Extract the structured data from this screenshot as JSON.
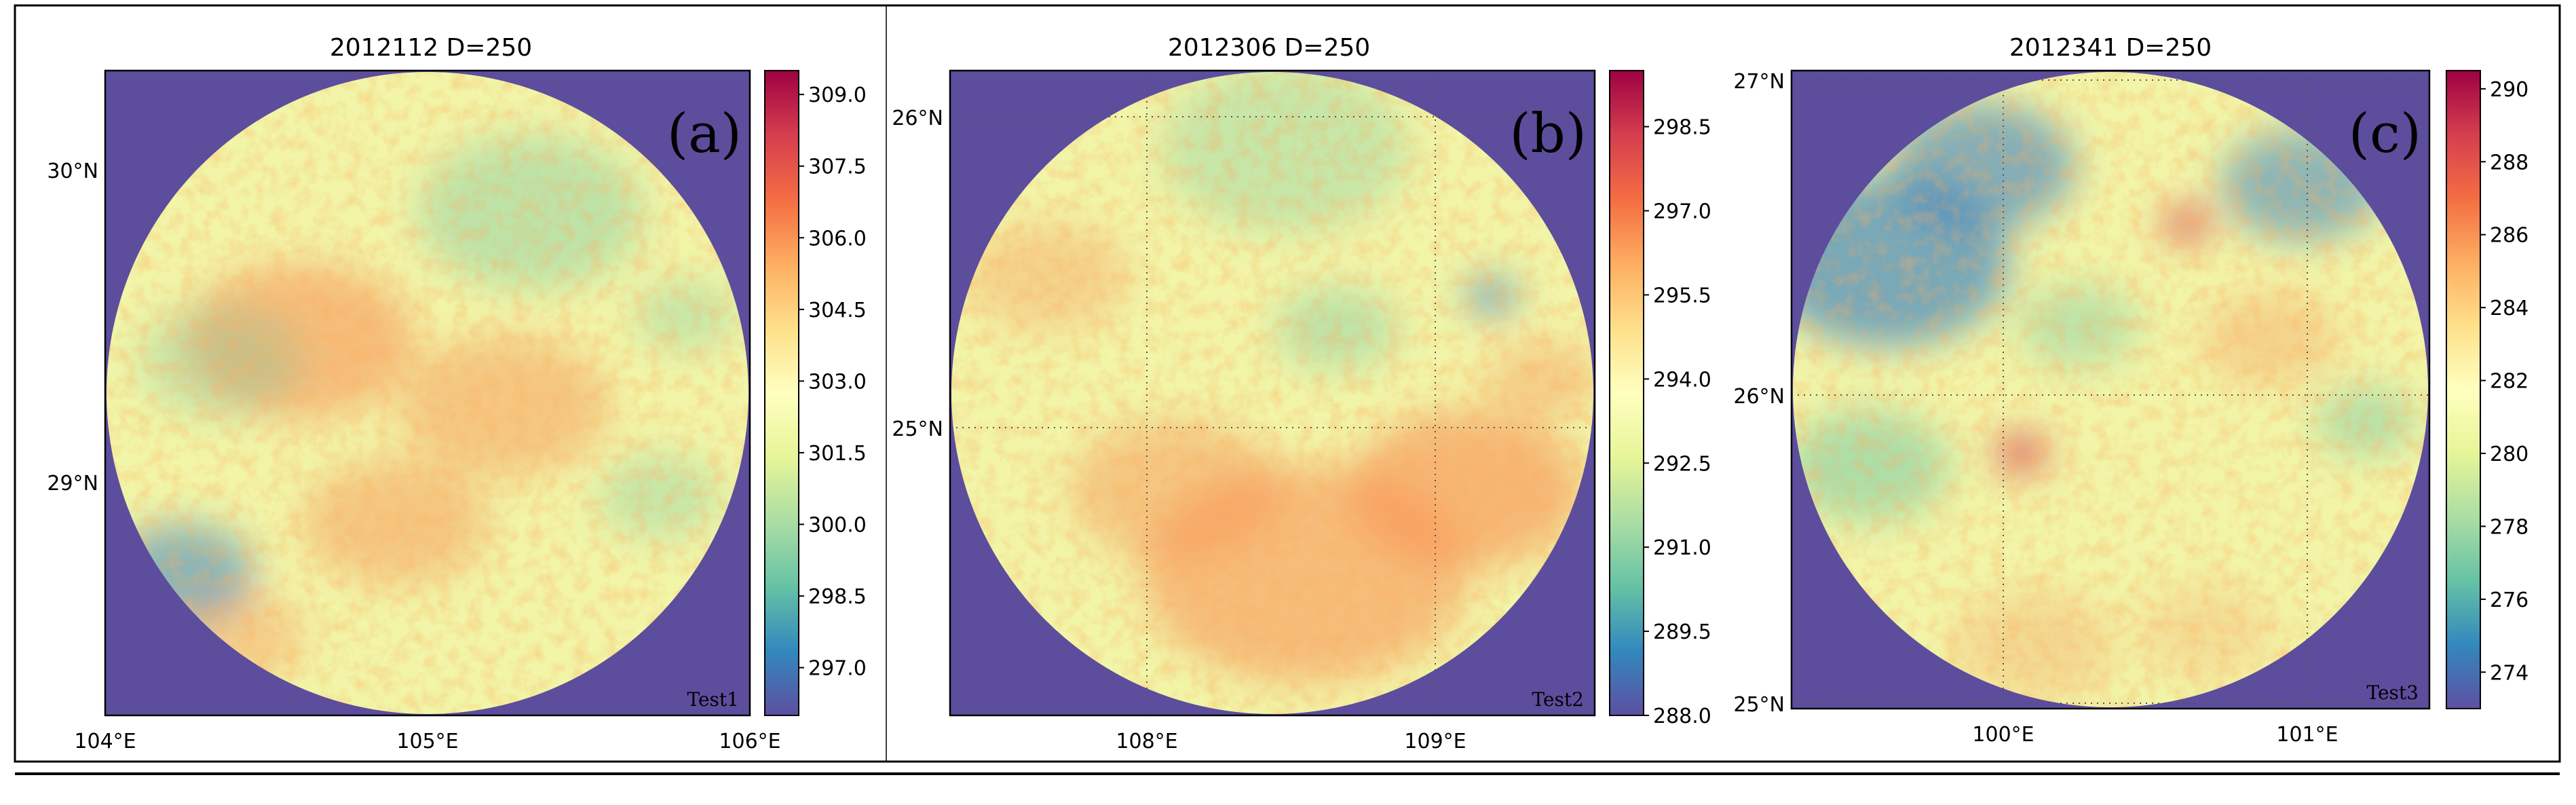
{
  "panels": [
    {
      "title": "2012112 D=250",
      "letter": "(a)",
      "test_label": "Test1",
      "lat_labels": [
        "30°N",
        "29°N"
      ],
      "lon_labels": [
        "104°E",
        "105°E",
        "106°E"
      ],
      "colorbar_ticks": [
        "309.0",
        "307.5",
        "306.0",
        "304.5",
        "303.0",
        "301.5",
        "300.0",
        "298.5",
        "297.0"
      ],
      "colorbar_range": [
        296.0,
        309.5
      ],
      "warm_blobs": [
        {
          "u": 0.3,
          "v": 0.42,
          "s": 1.0,
          "t": 1.0
        },
        {
          "u": 0.62,
          "v": 0.52,
          "s": 0.9,
          "t": 0.8
        },
        {
          "u": 0.45,
          "v": 0.7,
          "s": 0.8,
          "t": 0.8
        },
        {
          "u": 0.2,
          "v": 0.88,
          "s": 0.6,
          "t": 0.7
        }
      ],
      "cool_blobs": [
        {
          "u": 0.66,
          "v": 0.22,
          "s": 1.1,
          "t": 0.6
        },
        {
          "u": 0.18,
          "v": 0.45,
          "s": 0.8,
          "t": 0.5
        },
        {
          "u": 0.12,
          "v": 0.78,
          "s": 0.7,
          "t": 0.9
        },
        {
          "u": 0.86,
          "v": 0.66,
          "s": 0.6,
          "t": 0.5
        },
        {
          "u": 0.9,
          "v": 0.38,
          "s": 0.5,
          "t": 0.5
        }
      ]
    },
    {
      "title": "2012306 D=250",
      "letter": "(b)",
      "test_label": "Test2",
      "lat_labels": [
        "26°N",
        "25°N"
      ],
      "lon_labels": [
        "108°E",
        "109°E"
      ],
      "colorbar_ticks": [
        "298.5",
        "297.0",
        "295.5",
        "294.0",
        "292.5",
        "291.0",
        "289.5",
        "288.0"
      ],
      "colorbar_range": [
        288.0,
        299.5
      ],
      "warm_blobs": [
        {
          "u": 0.55,
          "v": 0.78,
          "s": 1.4,
          "t": 1.0
        },
        {
          "u": 0.8,
          "v": 0.65,
          "s": 1.0,
          "t": 1.1
        },
        {
          "u": 0.35,
          "v": 0.65,
          "s": 0.9,
          "t": 0.8
        },
        {
          "u": 0.15,
          "v": 0.32,
          "s": 0.7,
          "t": 0.6
        },
        {
          "u": 0.92,
          "v": 0.48,
          "s": 0.5,
          "t": 0.7
        }
      ],
      "cool_blobs": [
        {
          "u": 0.52,
          "v": 0.12,
          "s": 1.2,
          "t": 0.5
        },
        {
          "u": 0.6,
          "v": 0.4,
          "s": 0.6,
          "t": 0.6
        },
        {
          "u": 0.84,
          "v": 0.35,
          "s": 0.25,
          "t": 1.2
        }
      ]
    },
    {
      "title": "2012341 D=250",
      "letter": "(c)",
      "test_label": "Test3",
      "lat_labels": [
        "27°N",
        "26°N",
        "25°N"
      ],
      "lon_labels": [
        "100°E",
        "101°E"
      ],
      "colorbar_ticks": [
        "290",
        "288",
        "286",
        "284",
        "282",
        "280",
        "278",
        "276",
        "274"
      ],
      "colorbar_range": [
        273.0,
        290.5
      ],
      "warm_blobs": [
        {
          "u": 0.62,
          "v": 0.24,
          "s": 0.2,
          "t": 2.0
        },
        {
          "u": 0.36,
          "v": 0.6,
          "s": 0.22,
          "t": 2.0
        },
        {
          "u": 0.75,
          "v": 0.42,
          "s": 0.6,
          "t": 0.6
        },
        {
          "u": 0.38,
          "v": 0.9,
          "s": 0.7,
          "t": 0.5
        },
        {
          "u": 0.65,
          "v": 0.88,
          "s": 0.6,
          "t": 0.4
        }
      ],
      "cool_blobs": [
        {
          "u": 0.15,
          "v": 0.3,
          "s": 1.2,
          "t": 1.1
        },
        {
          "u": 0.3,
          "v": 0.15,
          "s": 0.9,
          "t": 1.0
        },
        {
          "u": 0.8,
          "v": 0.18,
          "s": 0.8,
          "t": 0.9
        },
        {
          "u": 0.12,
          "v": 0.62,
          "s": 0.8,
          "t": 0.8
        },
        {
          "u": 0.45,
          "v": 0.4,
          "s": 0.6,
          "t": 0.6
        },
        {
          "u": 0.9,
          "v": 0.55,
          "s": 0.5,
          "t": 0.7
        }
      ]
    }
  ],
  "colors": {
    "background_fill": "#5d4d9d",
    "frame": "#000000",
    "colormap": [
      "#5e4fa2",
      "#3288bd",
      "#66c2a5",
      "#abdda4",
      "#e6f598",
      "#ffffbf",
      "#fee08b",
      "#fdae61",
      "#f46d43",
      "#d53e4f",
      "#9e0142"
    ]
  }
}
